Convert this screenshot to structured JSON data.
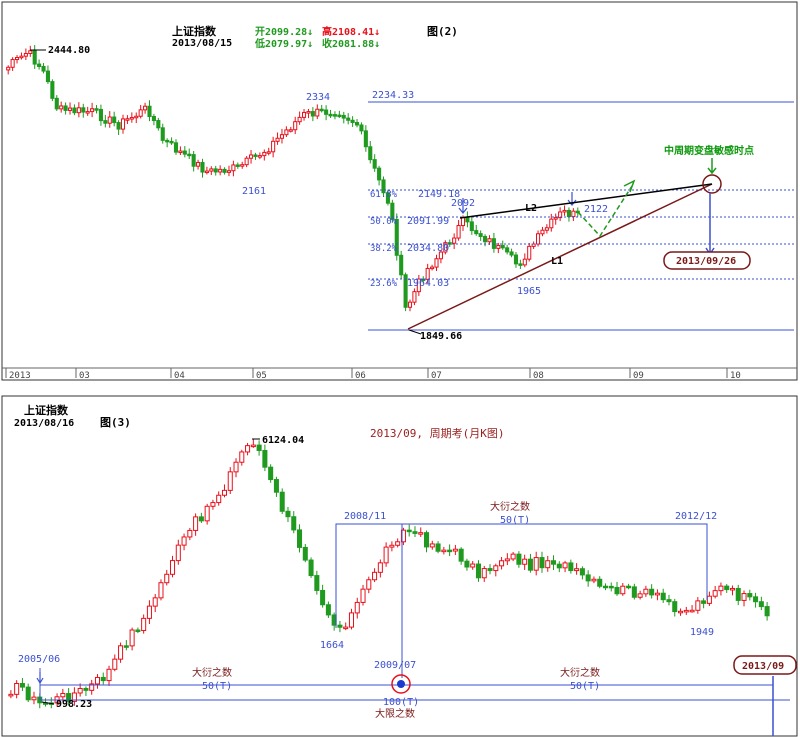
{
  "chart_data": [
    {
      "type": "candlestick",
      "title": "图(2)",
      "index_name": "上证指数",
      "date": "2013/08/15",
      "quote": {
        "open": "开2099.28↓",
        "high": "高2108.41↓",
        "low": "低2079.97↓",
        "close": "收2081.88↓"
      },
      "x_ticks": [
        "2013",
        "03",
        "04",
        "05",
        "06",
        "07",
        "08",
        "09",
        "10"
      ],
      "price_labels": [
        "2444.80",
        "2334",
        "2161",
        "2092",
        "2122",
        "1965",
        "1849.66"
      ],
      "fib_levels": [
        {
          "label": "",
          "value": "2234.33"
        },
        {
          "label": "61.8%",
          "value": "2149.18"
        },
        {
          "label": "50.0%",
          "value": "2091.99"
        },
        {
          "label": "38.2%",
          "value": "2034.80"
        },
        {
          "label": "23.6%",
          "value": "1964.03"
        }
      ],
      "trend_lines": [
        "L1",
        "L2"
      ],
      "annotation": "中周期变盘敏感时点",
      "target_date": "2013/09/26",
      "ylim": [
        1800,
        2460
      ],
      "colors": {
        "up": "#e8101a",
        "down": "#1f9a1f",
        "fib": "#3b50d0",
        "annotation": "#0e9a0e",
        "target": "#7a1818"
      }
    },
    {
      "type": "candlestick",
      "title": "图(3)",
      "index_name": "上证指数",
      "date": "2013/08/16",
      "subtitle": "2013/09, 周期考(月K图)",
      "price_labels": [
        "6124.04",
        "1664",
        "998.23",
        "1949"
      ],
      "date_labels": [
        "2005/06",
        "2008/11",
        "2009/07",
        "2012/12",
        "2013/09"
      ],
      "cycle_labels": [
        {
          "name": "大衍之数",
          "value": "50(T)"
        },
        {
          "name": "大衍之数",
          "value": "50(T)"
        },
        {
          "name": "大衍之数",
          "value": "50(T)"
        },
        {
          "name": "大限之数",
          "value": "100(T)"
        }
      ],
      "ylim": [
        900,
        6300
      ],
      "colors": {
        "up": "#e8101a",
        "down": "#1f9a1f",
        "guide": "#3b50d0",
        "title": "#9a2020"
      }
    }
  ]
}
